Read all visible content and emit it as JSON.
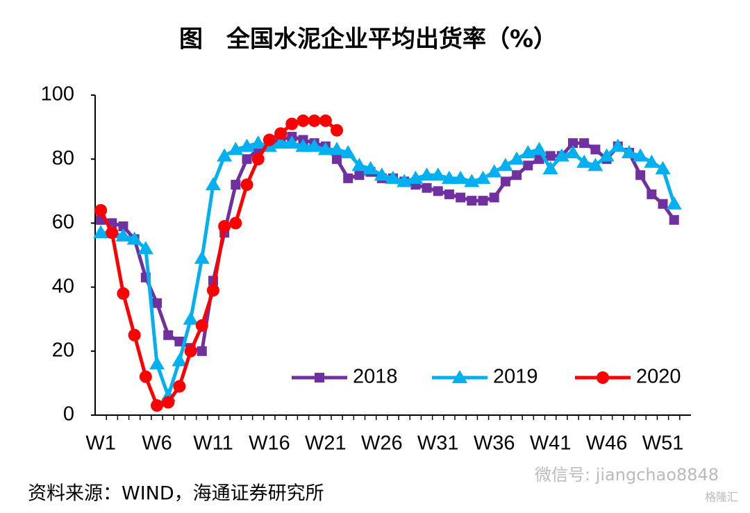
{
  "chart_data": {
    "type": "line",
    "title": "图　全国水泥企业平均出货率（%）",
    "source": "资料来源：WIND，海通证券研究所",
    "watermark": "微信号: jiangchao8848",
    "watermark_logo": "格隆汇",
    "categories": [
      "W1",
      null,
      null,
      null,
      null,
      "W6",
      null,
      null,
      null,
      null,
      "W11",
      null,
      null,
      null,
      null,
      "W16",
      null,
      null,
      null,
      null,
      "W21",
      null,
      null,
      null,
      null,
      "W26",
      null,
      null,
      null,
      null,
      "W31",
      null,
      null,
      null,
      null,
      "W36",
      null,
      null,
      null,
      null,
      "W41",
      null,
      null,
      null,
      null,
      "W46",
      null,
      null,
      null,
      null,
      "W51",
      null
    ],
    "series": [
      {
        "name": "2018",
        "color": "#7030a0",
        "marker": "square",
        "values": [
          61,
          60,
          59,
          55,
          43,
          35,
          25,
          23,
          21,
          20,
          42,
          57,
          72,
          80,
          83,
          85,
          86,
          87,
          86,
          85,
          84,
          80,
          74,
          75,
          76,
          74,
          74,
          73,
          72,
          71,
          70,
          69,
          68,
          67,
          67,
          68,
          73,
          75,
          78,
          80,
          81,
          81,
          85,
          85,
          83,
          80,
          84,
          82,
          75,
          69,
          66,
          61
        ]
      },
      {
        "name": "2019",
        "color": "#00b0f0",
        "marker": "triangle",
        "values": [
          57,
          57,
          56,
          55,
          52,
          16,
          6,
          17,
          30,
          49,
          72,
          81,
          83,
          84,
          85,
          84,
          85,
          85,
          84,
          84,
          83,
          83,
          82,
          78,
          77,
          75,
          74,
          73,
          74,
          75,
          75,
          74,
          74,
          73,
          74,
          76,
          78,
          80,
          82,
          83,
          77,
          81,
          82,
          79,
          78,
          81,
          84,
          82,
          81,
          79,
          77,
          66
        ]
      },
      {
        "name": "2020",
        "color": "#ff0000",
        "marker": "circle",
        "values": [
          64,
          57,
          38,
          25,
          12,
          3,
          4,
          9,
          20,
          28,
          39,
          59,
          60,
          72,
          80,
          86,
          88,
          91,
          92,
          92,
          92,
          89,
          null,
          null,
          null,
          null,
          null,
          null,
          null,
          null,
          null,
          null,
          null,
          null,
          null,
          null,
          null,
          null,
          null,
          null,
          null,
          null,
          null,
          null,
          null,
          null,
          null,
          null,
          null,
          null,
          null,
          null
        ]
      }
    ],
    "ylim": [
      0,
      100
    ],
    "yticks": [
      0,
      20,
      40,
      60,
      80,
      100
    ],
    "grid": false
  }
}
